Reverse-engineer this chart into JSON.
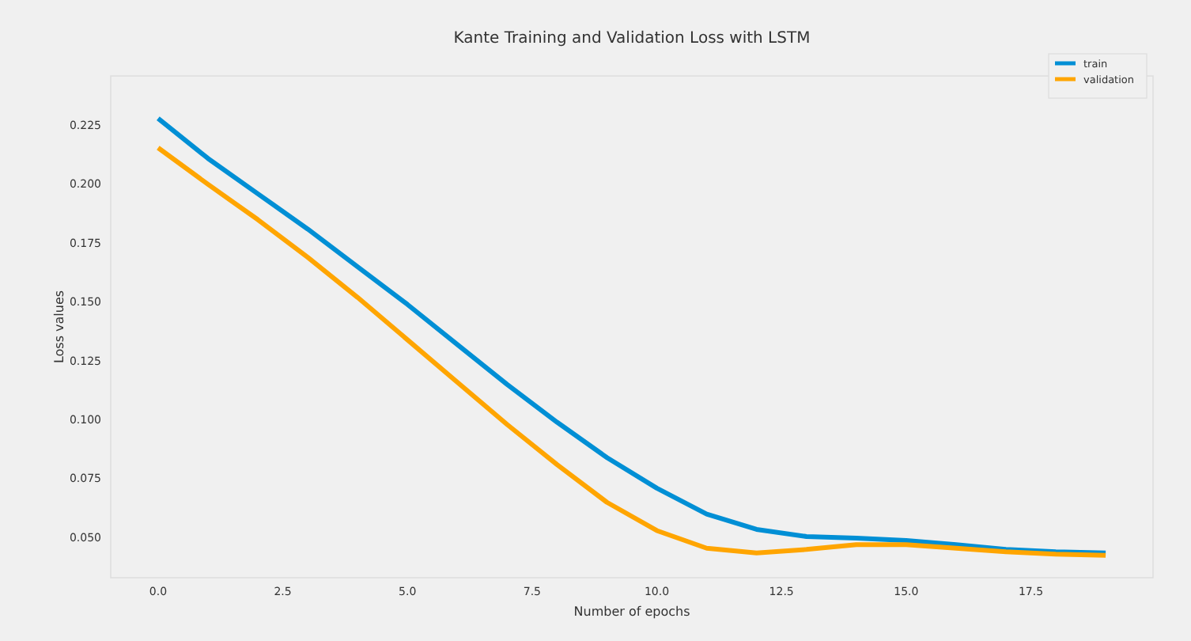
{
  "chart_data": {
    "type": "line",
    "title": "Kante Training and Validation Loss with LSTM",
    "xlabel": "Number of epochs",
    "ylabel": "Loss values",
    "x": [
      0,
      1,
      2,
      3,
      4,
      5,
      6,
      7,
      8,
      9,
      10,
      11,
      12,
      13,
      14,
      15,
      16,
      17,
      18,
      19
    ],
    "series": [
      {
        "name": "train",
        "color": "#008fd5",
        "values": [
          0.228,
          0.211,
          0.196,
          0.181,
          0.165,
          0.149,
          0.132,
          0.115,
          0.099,
          0.084,
          0.071,
          0.06,
          0.0535,
          0.0505,
          0.0498,
          0.0488,
          0.047,
          0.045,
          0.044,
          0.0435
        ]
      },
      {
        "name": "validation",
        "color": "#ffa500",
        "values": [
          0.2155,
          0.2,
          0.185,
          0.169,
          0.152,
          0.134,
          0.116,
          0.098,
          0.081,
          0.065,
          0.053,
          0.0455,
          0.0435,
          0.045,
          0.047,
          0.047,
          0.0455,
          0.044,
          0.043,
          0.0425
        ]
      }
    ],
    "xlim": [
      -0.95,
      19.95
    ],
    "xticks": [
      {
        "value": 0,
        "label": "0.0"
      },
      {
        "value": 2.5,
        "label": "2.5"
      },
      {
        "value": 5,
        "label": "5.0"
      },
      {
        "value": 7.5,
        "label": "7.5"
      },
      {
        "value": 10,
        "label": "10.0"
      },
      {
        "value": 12.5,
        "label": "12.5"
      },
      {
        "value": 15,
        "label": "15.0"
      },
      {
        "value": 17.5,
        "label": "17.5"
      }
    ],
    "ylim": [
      0.033,
      0.246
    ],
    "yticks": [
      {
        "value": 0.05,
        "label": "0.050"
      },
      {
        "value": 0.075,
        "label": "0.075"
      },
      {
        "value": 0.1,
        "label": "0.100"
      },
      {
        "value": 0.125,
        "label": "0.125"
      },
      {
        "value": 0.15,
        "label": "0.150"
      },
      {
        "value": 0.175,
        "label": "0.175"
      },
      {
        "value": 0.2,
        "label": "0.200"
      },
      {
        "value": 0.225,
        "label": "0.225"
      }
    ],
    "grid": false,
    "legend": "top right",
    "marker": "none",
    "line_style": "solid"
  }
}
